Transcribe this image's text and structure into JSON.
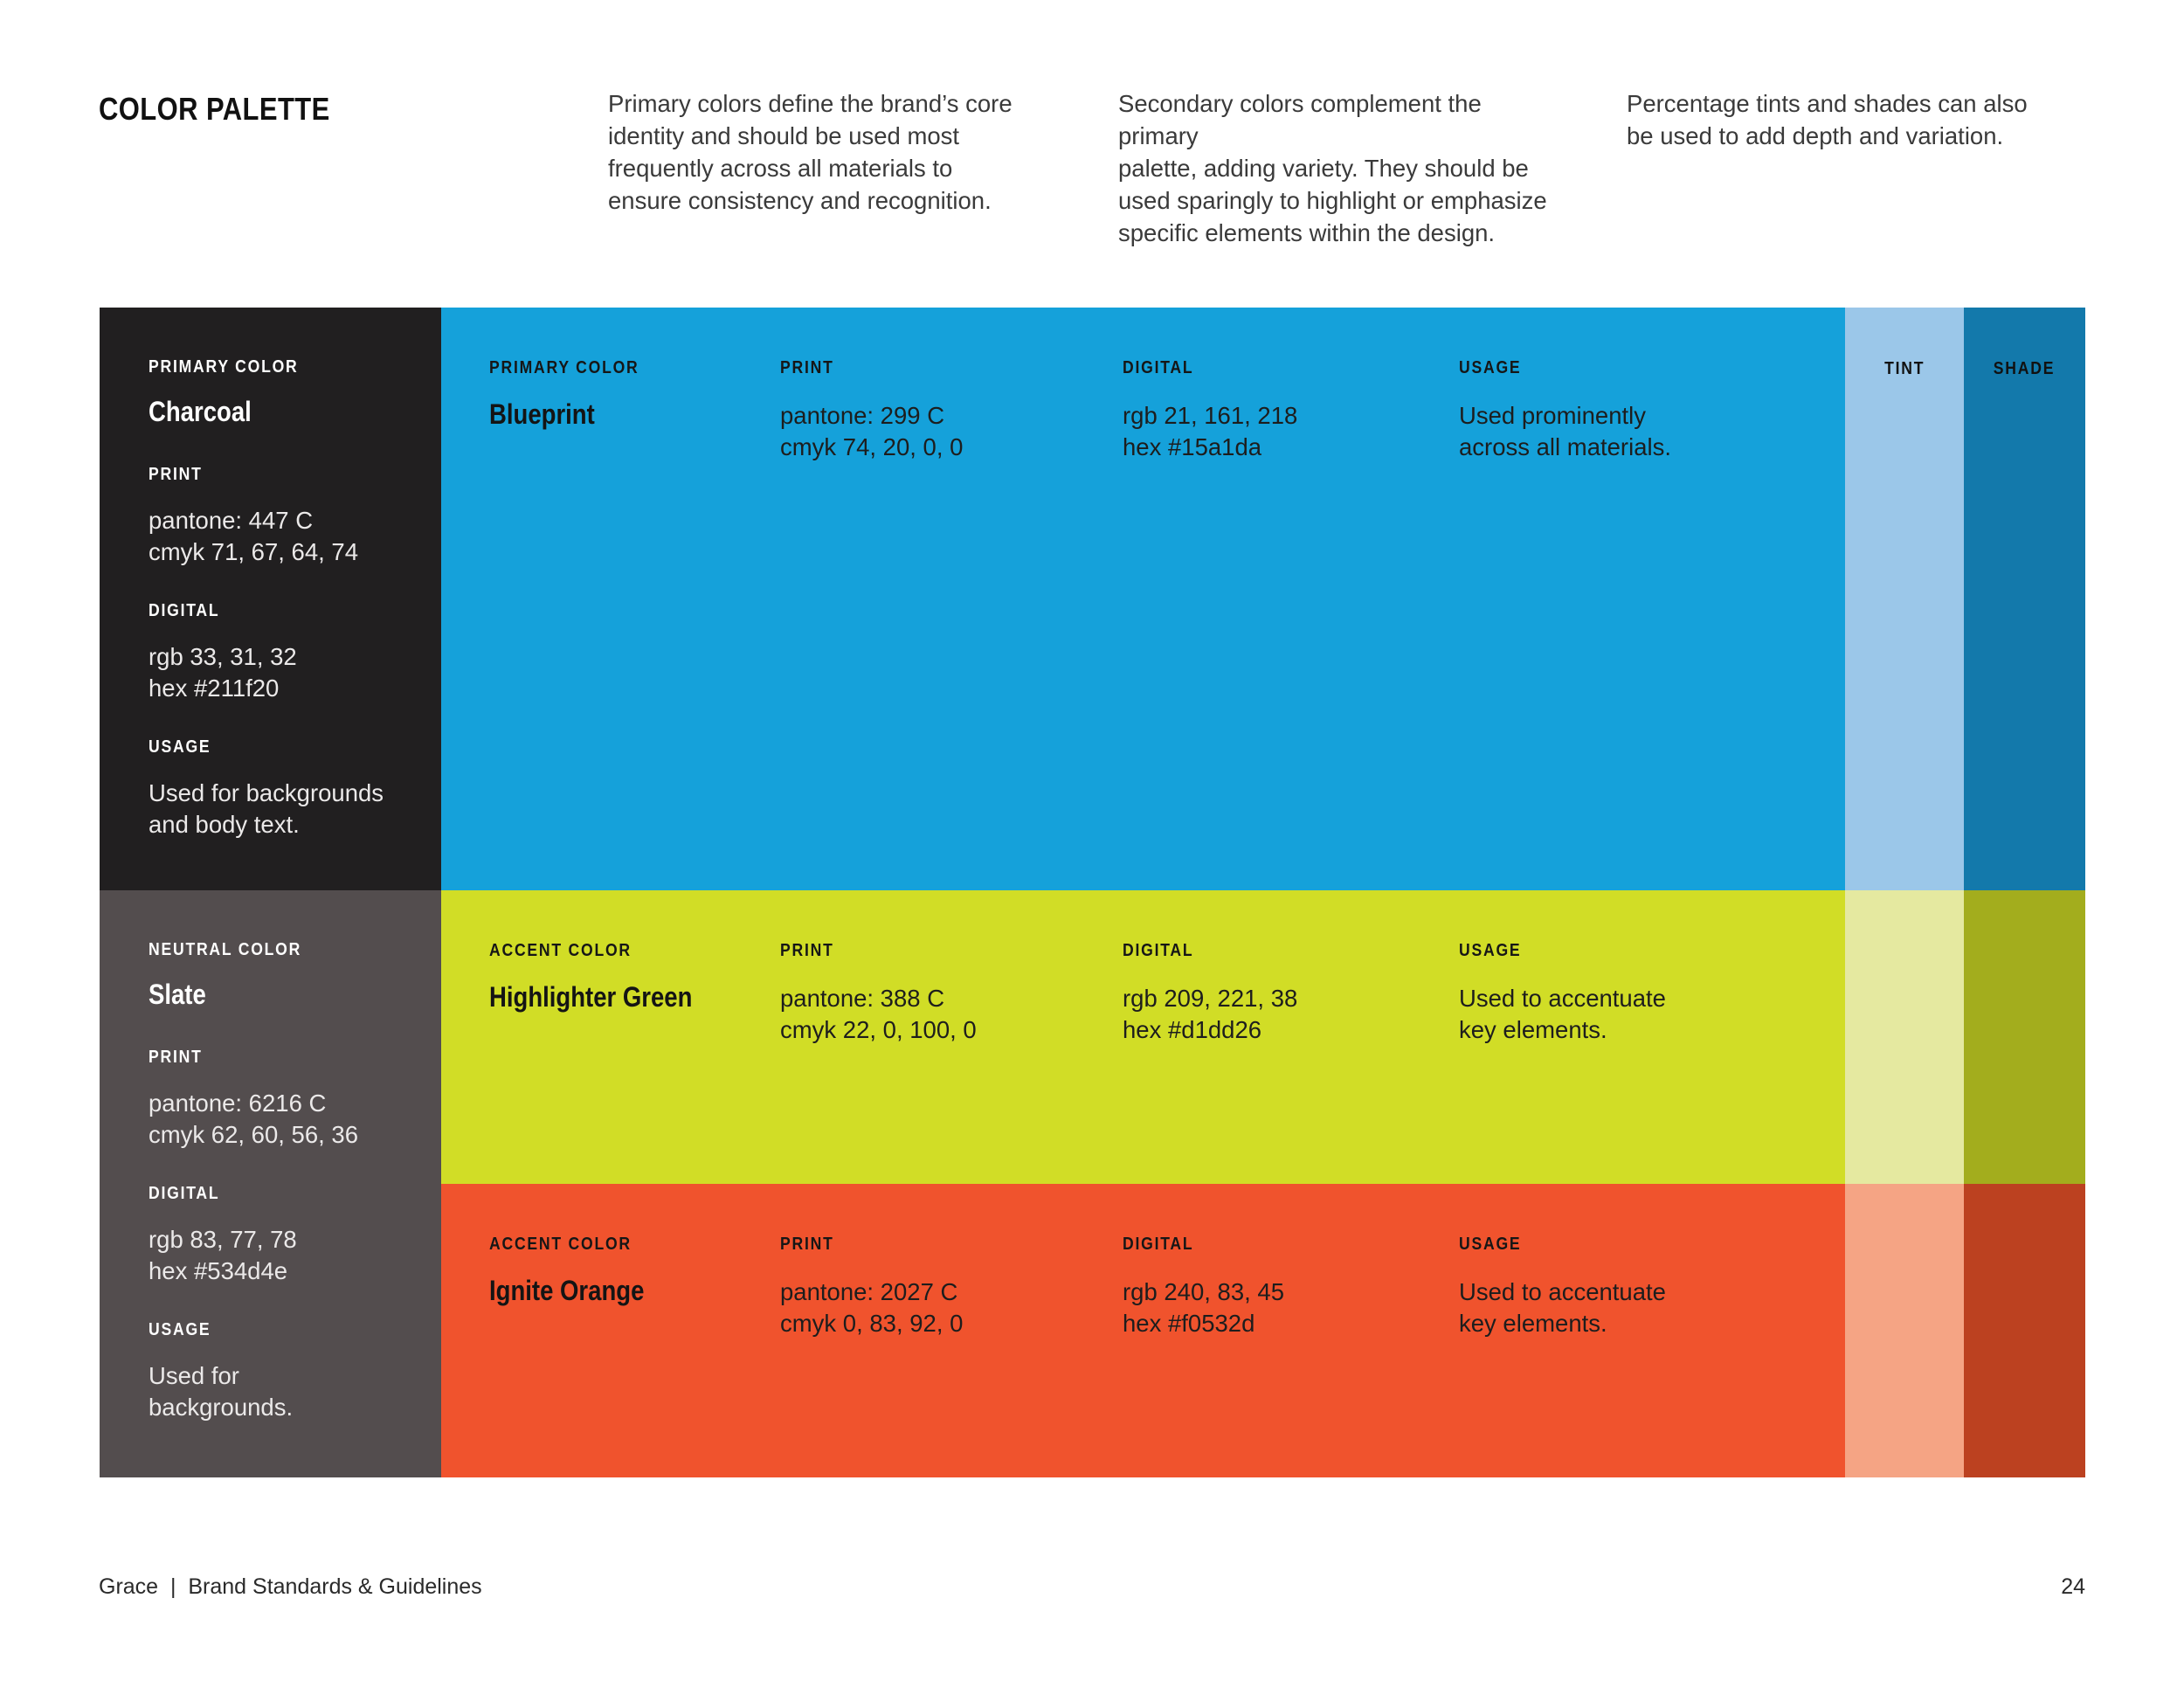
{
  "header": {
    "title": "COLOR PALETTE",
    "intro_primary": "Primary colors define the brand’s core\nidentity and should be used most\nfrequently across all materials to\nensure consistency and recognition.",
    "intro_secondary": "Secondary colors complement the primary\npalette, adding variety. They should be\nused sparingly to highlight or emphasize\nspecific elements within the design.",
    "intro_tints": "Percentage tints and shades can also\nbe used to add depth and variation."
  },
  "labels": {
    "print": "PRINT",
    "digital": "DIGITAL",
    "usage": "USAGE",
    "tint": "TINT",
    "shade": "SHADE"
  },
  "left_cards": [
    {
      "category": "PRIMARY COLOR",
      "name": "Charcoal",
      "print": "pantone: 447 C\ncmyk 71, 67, 64, 74",
      "digital": "rgb 33, 31, 32\nhex #211f20",
      "usage": "Used for backgrounds\nand body text.",
      "bg": "#211f20"
    },
    {
      "category": "NEUTRAL COLOR",
      "name": "Slate",
      "print": "pantone: 6216 C\ncmyk 62, 60, 56, 36",
      "digital": "rgb 83, 77, 78\nhex #534d4e",
      "usage": "Used for\nbackgrounds.",
      "bg": "#534d4e"
    }
  ],
  "rows": [
    {
      "category": "PRIMARY COLOR",
      "name": "Blueprint",
      "print": "pantone: 299 C\ncmyk 74, 20, 0, 0",
      "digital": "rgb 21, 161, 218\nhex #15a1da",
      "usage": "Used prominently\nacross all materials.",
      "bg": "#15a1da",
      "tint": "#9bc7e9",
      "shade": "#1379ab"
    },
    {
      "category": "ACCENT COLOR",
      "name": "Highlighter Green",
      "print": "pantone: 388 C\ncmyk 22, 0, 100, 0",
      "digital": "rgb 209, 221, 38\nhex #d1dd26",
      "usage": "Used to accentuate\nkey elements.",
      "bg": "#d1dd26",
      "tint": "#e5e9a0",
      "shade": "#a3ad1d"
    },
    {
      "category": "ACCENT COLOR",
      "name": "Ignite Orange",
      "print": "pantone: 2027 C\ncmyk 0, 83, 92, 0",
      "digital": "rgb 240, 83, 45\nhex #f0532d",
      "usage": "Used to accentuate\nkey elements.",
      "bg": "#f0532d",
      "tint": "#f5a484",
      "shade": "#bc4120"
    }
  ],
  "footer": {
    "left": "Grace  |  Brand Standards & Guidelines",
    "page_number": "24"
  }
}
